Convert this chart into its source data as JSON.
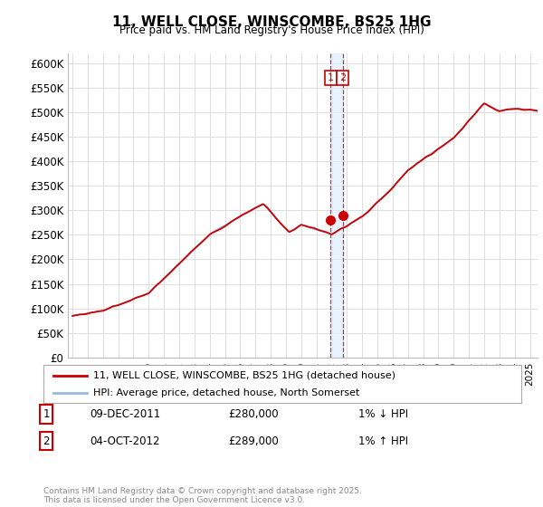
{
  "title": "11, WELL CLOSE, WINSCOMBE, BS25 1HG",
  "subtitle": "Price paid vs. HM Land Registry's House Price Index (HPI)",
  "ylim": [
    0,
    620000
  ],
  "yticks": [
    0,
    50000,
    100000,
    150000,
    200000,
    250000,
    300000,
    350000,
    400000,
    450000,
    500000,
    550000,
    600000
  ],
  "ytick_labels": [
    "£0",
    "£50K",
    "£100K",
    "£150K",
    "£200K",
    "£250K",
    "£300K",
    "£350K",
    "£400K",
    "£450K",
    "£500K",
    "£550K",
    "£600K"
  ],
  "line1_color": "#cc0000",
  "line2_color": "#99bbdd",
  "marker_color": "#cc0000",
  "annotation_color": "#cc0000",
  "shade_color": "#ddeeff",
  "bg_color": "#ffffff",
  "grid_color": "#dddddd",
  "legend_label1": "11, WELL CLOSE, WINSCOMBE, BS25 1HG (detached house)",
  "legend_label2": "HPI: Average price, detached house, North Somerset",
  "transaction1_date": "09-DEC-2011",
  "transaction1_price": 280000,
  "transaction1_note": "1% ↓ HPI",
  "transaction2_date": "04-OCT-2012",
  "transaction2_price": 289000,
  "transaction2_note": "1% ↑ HPI",
  "footer": "Contains HM Land Registry data © Crown copyright and database right 2025.\nThis data is licensed under the Open Government Licence v3.0.",
  "x_start_year": 1995,
  "x_end_year": 2025,
  "t1_year": 2011.917,
  "t2_year": 2012.75
}
